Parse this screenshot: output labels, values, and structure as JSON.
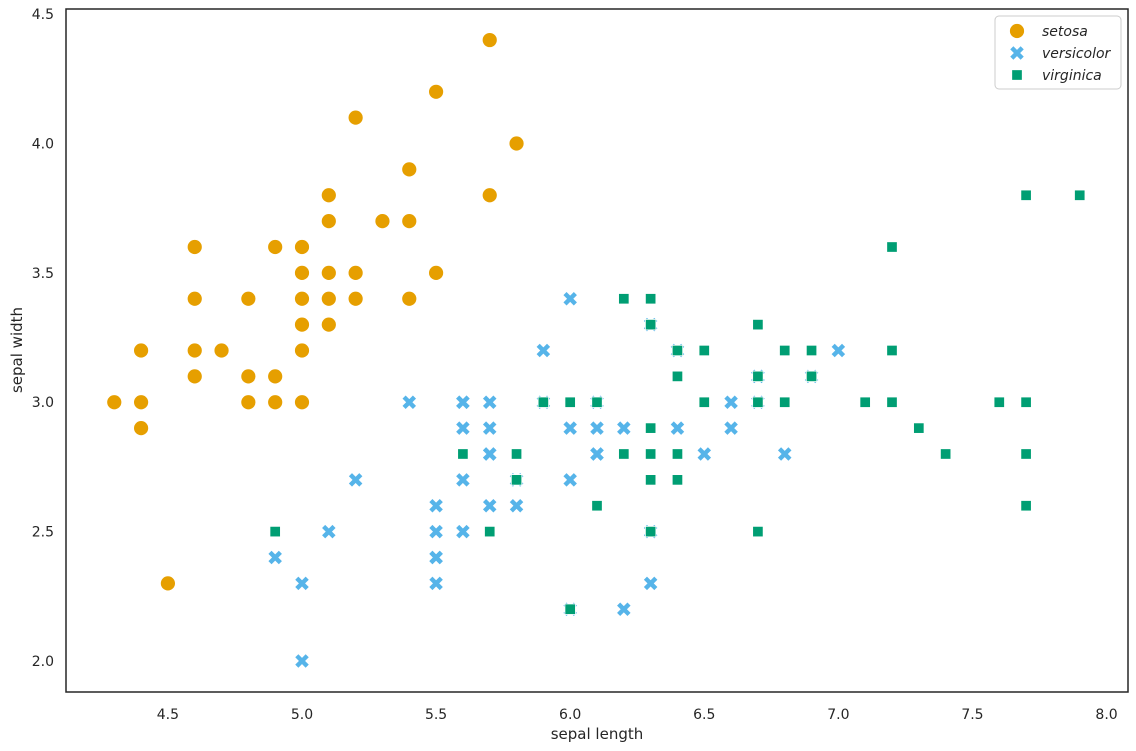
{
  "chart_data": {
    "type": "scatter",
    "title": "",
    "xlabel": "sepal length",
    "ylabel": "sepal width",
    "xlim": [
      4.12,
      8.08
    ],
    "ylim": [
      1.88,
      4.52
    ],
    "xticks": [
      4.5,
      5.0,
      5.5,
      6.0,
      6.5,
      7.0,
      7.5,
      8.0
    ],
    "xtick_labels": [
      "4.5",
      "5.0",
      "5.5",
      "6.0",
      "6.5",
      "7.0",
      "7.5",
      "8.0"
    ],
    "yticks": [
      2.0,
      2.5,
      3.0,
      3.5,
      4.0,
      4.5
    ],
    "ytick_labels": [
      "2.0",
      "2.5",
      "3.0",
      "3.5",
      "4.0",
      "4.5"
    ],
    "grid": false,
    "legend": {
      "placement": "top-right"
    },
    "series": [
      {
        "name": "setosa",
        "marker": "circle",
        "color": "#E69F00",
        "points": [
          [
            5.1,
            3.5
          ],
          [
            4.9,
            3.0
          ],
          [
            4.7,
            3.2
          ],
          [
            4.6,
            3.1
          ],
          [
            5.0,
            3.6
          ],
          [
            5.4,
            3.9
          ],
          [
            4.6,
            3.4
          ],
          [
            5.0,
            3.4
          ],
          [
            4.4,
            2.9
          ],
          [
            4.9,
            3.1
          ],
          [
            5.4,
            3.7
          ],
          [
            4.8,
            3.4
          ],
          [
            4.8,
            3.0
          ],
          [
            4.3,
            3.0
          ],
          [
            5.8,
            4.0
          ],
          [
            5.7,
            4.4
          ],
          [
            5.4,
            3.9
          ],
          [
            5.1,
            3.5
          ],
          [
            5.7,
            3.8
          ],
          [
            5.1,
            3.8
          ],
          [
            5.4,
            3.4
          ],
          [
            5.1,
            3.7
          ],
          [
            4.6,
            3.6
          ],
          [
            5.1,
            3.3
          ],
          [
            4.8,
            3.4
          ],
          [
            5.0,
            3.0
          ],
          [
            5.0,
            3.4
          ],
          [
            5.2,
            3.5
          ],
          [
            5.2,
            3.4
          ],
          [
            4.7,
            3.2
          ],
          [
            4.8,
            3.1
          ],
          [
            5.4,
            3.4
          ],
          [
            5.2,
            4.1
          ],
          [
            5.5,
            4.2
          ],
          [
            4.9,
            3.1
          ],
          [
            5.0,
            3.2
          ],
          [
            5.5,
            3.5
          ],
          [
            4.9,
            3.6
          ],
          [
            4.4,
            3.0
          ],
          [
            5.1,
            3.4
          ],
          [
            5.0,
            3.5
          ],
          [
            4.5,
            2.3
          ],
          [
            4.4,
            3.2
          ],
          [
            5.0,
            3.5
          ],
          [
            5.1,
            3.8
          ],
          [
            4.8,
            3.0
          ],
          [
            5.1,
            3.8
          ],
          [
            4.6,
            3.2
          ],
          [
            5.3,
            3.7
          ],
          [
            5.0,
            3.3
          ]
        ]
      },
      {
        "name": "versicolor",
        "marker": "x",
        "color": "#56B4E9",
        "points": [
          [
            7.0,
            3.2
          ],
          [
            6.4,
            3.2
          ],
          [
            6.9,
            3.1
          ],
          [
            5.5,
            2.3
          ],
          [
            6.5,
            2.8
          ],
          [
            5.7,
            2.8
          ],
          [
            6.3,
            3.3
          ],
          [
            4.9,
            2.4
          ],
          [
            6.6,
            2.9
          ],
          [
            5.2,
            2.7
          ],
          [
            5.0,
            2.0
          ],
          [
            5.9,
            3.0
          ],
          [
            6.0,
            2.2
          ],
          [
            6.1,
            2.9
          ],
          [
            5.6,
            2.9
          ],
          [
            6.7,
            3.1
          ],
          [
            5.6,
            3.0
          ],
          [
            5.8,
            2.7
          ],
          [
            6.2,
            2.2
          ],
          [
            5.6,
            2.5
          ],
          [
            5.9,
            3.2
          ],
          [
            6.1,
            2.8
          ],
          [
            6.3,
            2.5
          ],
          [
            6.1,
            2.8
          ],
          [
            6.4,
            2.9
          ],
          [
            6.6,
            3.0
          ],
          [
            6.8,
            2.8
          ],
          [
            6.7,
            3.0
          ],
          [
            6.0,
            2.9
          ],
          [
            5.7,
            2.6
          ],
          [
            5.5,
            2.4
          ],
          [
            5.5,
            2.4
          ],
          [
            5.8,
            2.7
          ],
          [
            6.0,
            2.7
          ],
          [
            5.4,
            3.0
          ],
          [
            6.0,
            3.4
          ],
          [
            6.7,
            3.1
          ],
          [
            6.3,
            2.3
          ],
          [
            5.6,
            3.0
          ],
          [
            5.5,
            2.5
          ],
          [
            5.5,
            2.6
          ],
          [
            6.1,
            3.0
          ],
          [
            5.8,
            2.6
          ],
          [
            5.0,
            2.3
          ],
          [
            5.6,
            2.7
          ],
          [
            5.7,
            3.0
          ],
          [
            5.7,
            2.9
          ],
          [
            6.2,
            2.9
          ],
          [
            5.1,
            2.5
          ],
          [
            5.7,
            2.8
          ]
        ]
      },
      {
        "name": "virginica",
        "marker": "square",
        "color": "#009E73",
        "points": [
          [
            6.3,
            3.3
          ],
          [
            5.8,
            2.7
          ],
          [
            7.1,
            3.0
          ],
          [
            6.3,
            2.9
          ],
          [
            6.5,
            3.0
          ],
          [
            7.6,
            3.0
          ],
          [
            4.9,
            2.5
          ],
          [
            7.3,
            2.9
          ],
          [
            6.7,
            2.5
          ],
          [
            7.2,
            3.6
          ],
          [
            6.5,
            3.2
          ],
          [
            6.4,
            2.7
          ],
          [
            6.8,
            3.0
          ],
          [
            5.7,
            2.5
          ],
          [
            5.8,
            2.8
          ],
          [
            6.4,
            3.2
          ],
          [
            6.5,
            3.0
          ],
          [
            7.7,
            3.8
          ],
          [
            7.7,
            2.6
          ],
          [
            6.0,
            2.2
          ],
          [
            6.9,
            3.2
          ],
          [
            5.6,
            2.8
          ],
          [
            7.7,
            2.8
          ],
          [
            6.3,
            2.7
          ],
          [
            6.7,
            3.3
          ],
          [
            7.2,
            3.2
          ],
          [
            6.2,
            2.8
          ],
          [
            6.1,
            3.0
          ],
          [
            6.4,
            2.8
          ],
          [
            7.2,
            3.0
          ],
          [
            7.4,
            2.8
          ],
          [
            7.9,
            3.8
          ],
          [
            6.4,
            2.8
          ],
          [
            6.3,
            2.8
          ],
          [
            6.1,
            2.6
          ],
          [
            7.7,
            3.0
          ],
          [
            6.3,
            3.4
          ],
          [
            6.4,
            3.1
          ],
          [
            6.0,
            3.0
          ],
          [
            6.9,
            3.1
          ],
          [
            6.7,
            3.1
          ],
          [
            6.9,
            3.1
          ],
          [
            5.8,
            2.7
          ],
          [
            6.8,
            3.2
          ],
          [
            6.7,
            3.3
          ],
          [
            6.7,
            3.0
          ],
          [
            6.3,
            2.5
          ],
          [
            6.5,
            3.0
          ],
          [
            6.2,
            3.4
          ],
          [
            5.9,
            3.0
          ]
        ]
      }
    ]
  }
}
